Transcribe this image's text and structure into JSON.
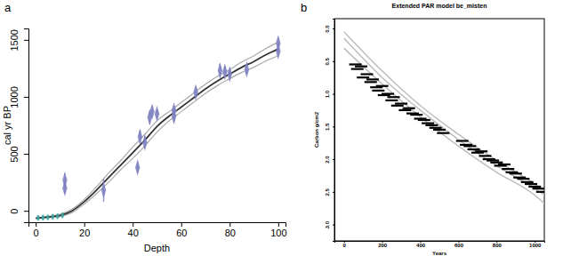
{
  "chart_data": [
    {
      "type": "line",
      "annotations": [
        "a"
      ],
      "xlabel": "Depth",
      "ylabel": "cal yr BP",
      "xlim": [
        -3,
        103
      ],
      "ylim": [
        -100,
        1600
      ],
      "xticks": [
        0,
        20,
        40,
        60,
        80,
        100
      ],
      "yticks": [
        0,
        500,
        1000,
        1500
      ],
      "series": [
        {
          "type": "line",
          "color": "#a8a8a8",
          "x": [
            0,
            5,
            10,
            15,
            20,
            25,
            30,
            35,
            40,
            45,
            50,
            55,
            60,
            65,
            70,
            75,
            80,
            85,
            90,
            95,
            100
          ],
          "values": [
            -65,
            -60,
            -50,
            -15,
            60,
            150,
            250,
            360,
            460,
            570,
            690,
            790,
            870,
            950,
            1030,
            1100,
            1160,
            1215,
            1260,
            1315,
            1360
          ]
        },
        {
          "type": "line",
          "color": "#a8a8a8",
          "x": [
            0,
            5,
            10,
            15,
            20,
            25,
            30,
            35,
            40,
            45,
            50,
            55,
            60,
            65,
            70,
            75,
            80,
            85,
            90,
            95,
            100
          ],
          "values": [
            -65,
            -50,
            -30,
            15,
            100,
            210,
            330,
            440,
            560,
            670,
            790,
            870,
            950,
            1030,
            1110,
            1180,
            1240,
            1305,
            1360,
            1425,
            1480
          ]
        },
        {
          "type": "line",
          "color": "#333333",
          "x": [
            0,
            5,
            10,
            15,
            20,
            25,
            30,
            35,
            40,
            45,
            50,
            55,
            60,
            65,
            70,
            75,
            80,
            85,
            90,
            95,
            100
          ],
          "values": [
            -65,
            -55,
            -40,
            0,
            80,
            180,
            290,
            400,
            510,
            620,
            740,
            830,
            910,
            990,
            1070,
            1140,
            1200,
            1260,
            1310,
            1370,
            1420
          ]
        },
        {
          "type": "scatter",
          "marker": "diamond",
          "color": "#7d80c0",
          "x": [
            12,
            12,
            28,
            42,
            43,
            45,
            47,
            48,
            50,
            57,
            57,
            66,
            76,
            78,
            80,
            87,
            100,
            100
          ],
          "values": [
            270,
            200,
            180,
            380,
            650,
            600,
            820,
            870,
            850,
            830,
            880,
            1040,
            1230,
            1220,
            1200,
            1240,
            1470,
            1400
          ],
          "errors": [
            60,
            50,
            100,
            40,
            60,
            50,
            60,
            50,
            40,
            50,
            40,
            50,
            60,
            50,
            40,
            40,
            50,
            40
          ]
        },
        {
          "type": "scatter",
          "marker": "circle",
          "color": "#3aa6a0",
          "x": [
            1,
            3,
            5,
            7,
            9,
            11
          ],
          "values": [
            -62,
            -60,
            -57,
            -52,
            -47,
            -40
          ]
        }
      ]
    },
    {
      "type": "line",
      "title": "Extended PAR model be_misten",
      "annotations": [
        "b"
      ],
      "xlabel": "Years",
      "ylabel": "Carbon g/cm2",
      "xlim": [
        -50,
        1050
      ],
      "ylim": [
        3.25,
        -0.15
      ],
      "xticks": [
        0,
        200,
        400,
        600,
        800,
        1000
      ],
      "yticks": [
        {
          "value": 0,
          "label": "0.0"
        },
        {
          "value": 0.5,
          "label": "0.5"
        },
        {
          "value": 1,
          "label": "1.0"
        },
        {
          "value": 1.5,
          "label": "1.5"
        },
        {
          "value": 2,
          "label": "2.0"
        },
        {
          "value": 2.5,
          "label": "2.5"
        },
        {
          "value": 3,
          "label": "3.0"
        }
      ],
      "series": [
        {
          "type": "line",
          "color": "#bdbdbd",
          "x": [
            0,
            200,
            400,
            600,
            800,
            1000,
            1050
          ],
          "values": [
            0.05,
            0.65,
            1.18,
            1.62,
            2.02,
            2.38,
            2.48
          ]
        },
        {
          "type": "line",
          "color": "#bdbdbd",
          "x": [
            0,
            200,
            400,
            600,
            800,
            1000,
            1050
          ],
          "values": [
            0.15,
            0.75,
            1.25,
            1.7,
            2.1,
            2.45,
            2.55
          ]
        },
        {
          "type": "line",
          "color": "#bdbdbd",
          "x": [
            0,
            200,
            400,
            600,
            800,
            1000,
            1050
          ],
          "values": [
            0.3,
            0.85,
            1.35,
            1.8,
            2.2,
            2.55,
            2.68
          ]
        },
        {
          "type": "scatter",
          "marker": "dash",
          "color": "#000000",
          "x": [
            60,
            70,
            90,
            100,
            120,
            140,
            150,
            170,
            180,
            200,
            210,
            230,
            250,
            260,
            280,
            300,
            320,
            340,
            360,
            380,
            400,
            420,
            440,
            460,
            480,
            500,
            520,
            620,
            640,
            660,
            680,
            700,
            720,
            740,
            760,
            780,
            800,
            820,
            840,
            860,
            880,
            900,
            920,
            940,
            960,
            980,
            1000,
            1020,
            1040
          ],
          "values": [
            0.55,
            0.62,
            0.58,
            0.75,
            0.7,
            0.82,
            0.78,
            0.9,
            0.95,
            0.88,
            1.02,
            1.0,
            1.1,
            1.05,
            1.18,
            1.15,
            1.25,
            1.22,
            1.3,
            1.32,
            1.38,
            1.4,
            1.45,
            1.48,
            1.52,
            1.55,
            1.6,
            1.72,
            1.78,
            1.8,
            1.85,
            1.9,
            1.88,
            1.95,
            2.0,
            2.02,
            2.05,
            2.1,
            2.08,
            2.15,
            2.2,
            2.22,
            2.28,
            2.3,
            2.35,
            2.38,
            2.42,
            2.45,
            2.5
          ]
        }
      ]
    }
  ]
}
